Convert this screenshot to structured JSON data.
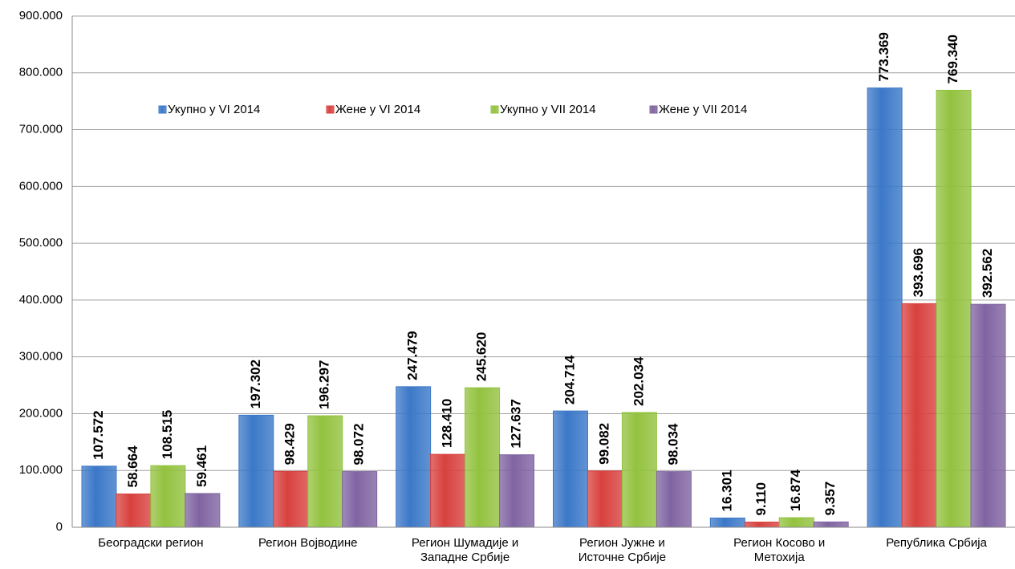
{
  "chart_data": {
    "type": "bar",
    "categories": [
      "Београдски регион",
      "Регион Војводине",
      "Регион Шумадије и Западне Србије",
      "Регион Јужне и Источне Србије",
      "Регион Косово и Метохија",
      "Република Србија"
    ],
    "series": [
      {
        "name": "Укупно у VI 2014",
        "color": "#3b78c8",
        "values": [
          107572,
          197302,
          247479,
          204714,
          16301,
          773369
        ],
        "value_labels": [
          "107.572",
          "197.302",
          "247.479",
          "204.714",
          "16.301",
          "773.369"
        ]
      },
      {
        "name": "Жене у VI 2014",
        "color": "#d8413e",
        "values": [
          58664,
          98429,
          128410,
          99082,
          9110,
          393696
        ],
        "value_labels": [
          "58.664",
          "98.429",
          "128.410",
          "99.082",
          "9.110",
          "393.696"
        ]
      },
      {
        "name": "Укупно у VII 2014",
        "color": "#93c23f",
        "values": [
          108515,
          196297,
          245620,
          202034,
          16874,
          769340
        ],
        "value_labels": [
          "108.515",
          "196.297",
          "245.620",
          "202.034",
          "16.874",
          "769.340"
        ]
      },
      {
        "name": "Жене у VII 2014",
        "color": "#8064a2",
        "values": [
          59461,
          98072,
          127637,
          98034,
          9357,
          392562
        ],
        "value_labels": [
          "59.461",
          "98.072",
          "127.637",
          "98.034",
          "9.357",
          "392.562"
        ]
      }
    ],
    "ylim": [
      0,
      900000
    ],
    "yticks": [
      0,
      {
        "value": 100000,
        "label": "100.000"
      },
      {
        "value": 200000,
        "label": "200.000"
      },
      {
        "value": 300000,
        "label": "300.000"
      },
      {
        "value": 400000,
        "label": "400.000"
      },
      {
        "value": 500000,
        "label": "500.000"
      },
      {
        "value": 600000,
        "label": "600.000"
      },
      {
        "value": 700000,
        "label": "700.000"
      },
      {
        "value": 800000,
        "label": "800.000"
      },
      {
        "value": 900000,
        "label": "900.000"
      }
    ],
    "grid": true,
    "legend": "top"
  }
}
